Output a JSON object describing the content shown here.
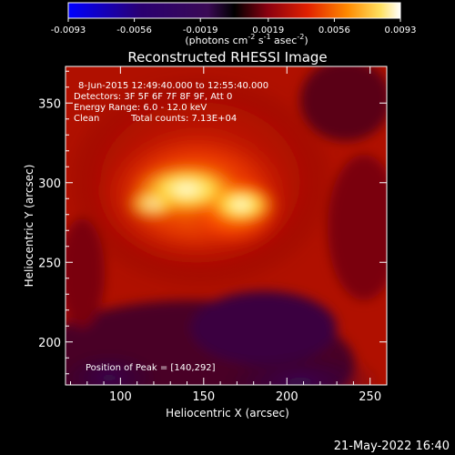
{
  "chart_data": {
    "type": "heatmap",
    "title": "Reconstructed RHESSI Image",
    "xlabel": "Heliocentric X (arcsec)",
    "ylabel": "Heliocentric Y (arcsec)",
    "xlim": [
      67,
      260
    ],
    "ylim": [
      173,
      373
    ],
    "x_ticks": [
      "100",
      "150",
      "200",
      "250"
    ],
    "x_tick_values": [
      100,
      150,
      200,
      250
    ],
    "y_ticks": [
      "200",
      "250",
      "300",
      "350"
    ],
    "y_tick_values": [
      200,
      250,
      300,
      350
    ],
    "colorbar": {
      "min": -0.0093,
      "max": 0.0093,
      "tick_labels": [
        "-0.0093",
        "-0.0056",
        "-0.0019",
        "0.0019",
        "0.0056",
        "0.0093"
      ],
      "tick_values": [
        -0.0093,
        -0.0056,
        -0.0019,
        0.0019,
        0.0056,
        0.0093
      ],
      "unit_prefix": "(photons cm",
      "unit_exp1": "-2",
      "unit_mid": " s",
      "unit_exp2": "-1",
      "unit_mid2": " asec",
      "unit_exp3": "-2",
      "unit_suffix": ")"
    },
    "annotations": {
      "time_range": "8-Jun-2015 12:49:40.000 to 12:55:40.000",
      "detectors": "Detectors: 3F 5F 6F 7F 8F 9F, Att 0",
      "energy_range": "Energy Range: 6.0 - 12.0 keV",
      "clean_label": "Clean",
      "total_counts": "Total counts: 7.13E+04",
      "peak_position": "Position of Peak = [140,292]"
    },
    "peak": {
      "x": 140,
      "y": 292
    },
    "colormap": "hot (black-purple-red-orange-yellow-white)"
  },
  "footer": {
    "timestamp": "21-May-2022 16:40"
  }
}
